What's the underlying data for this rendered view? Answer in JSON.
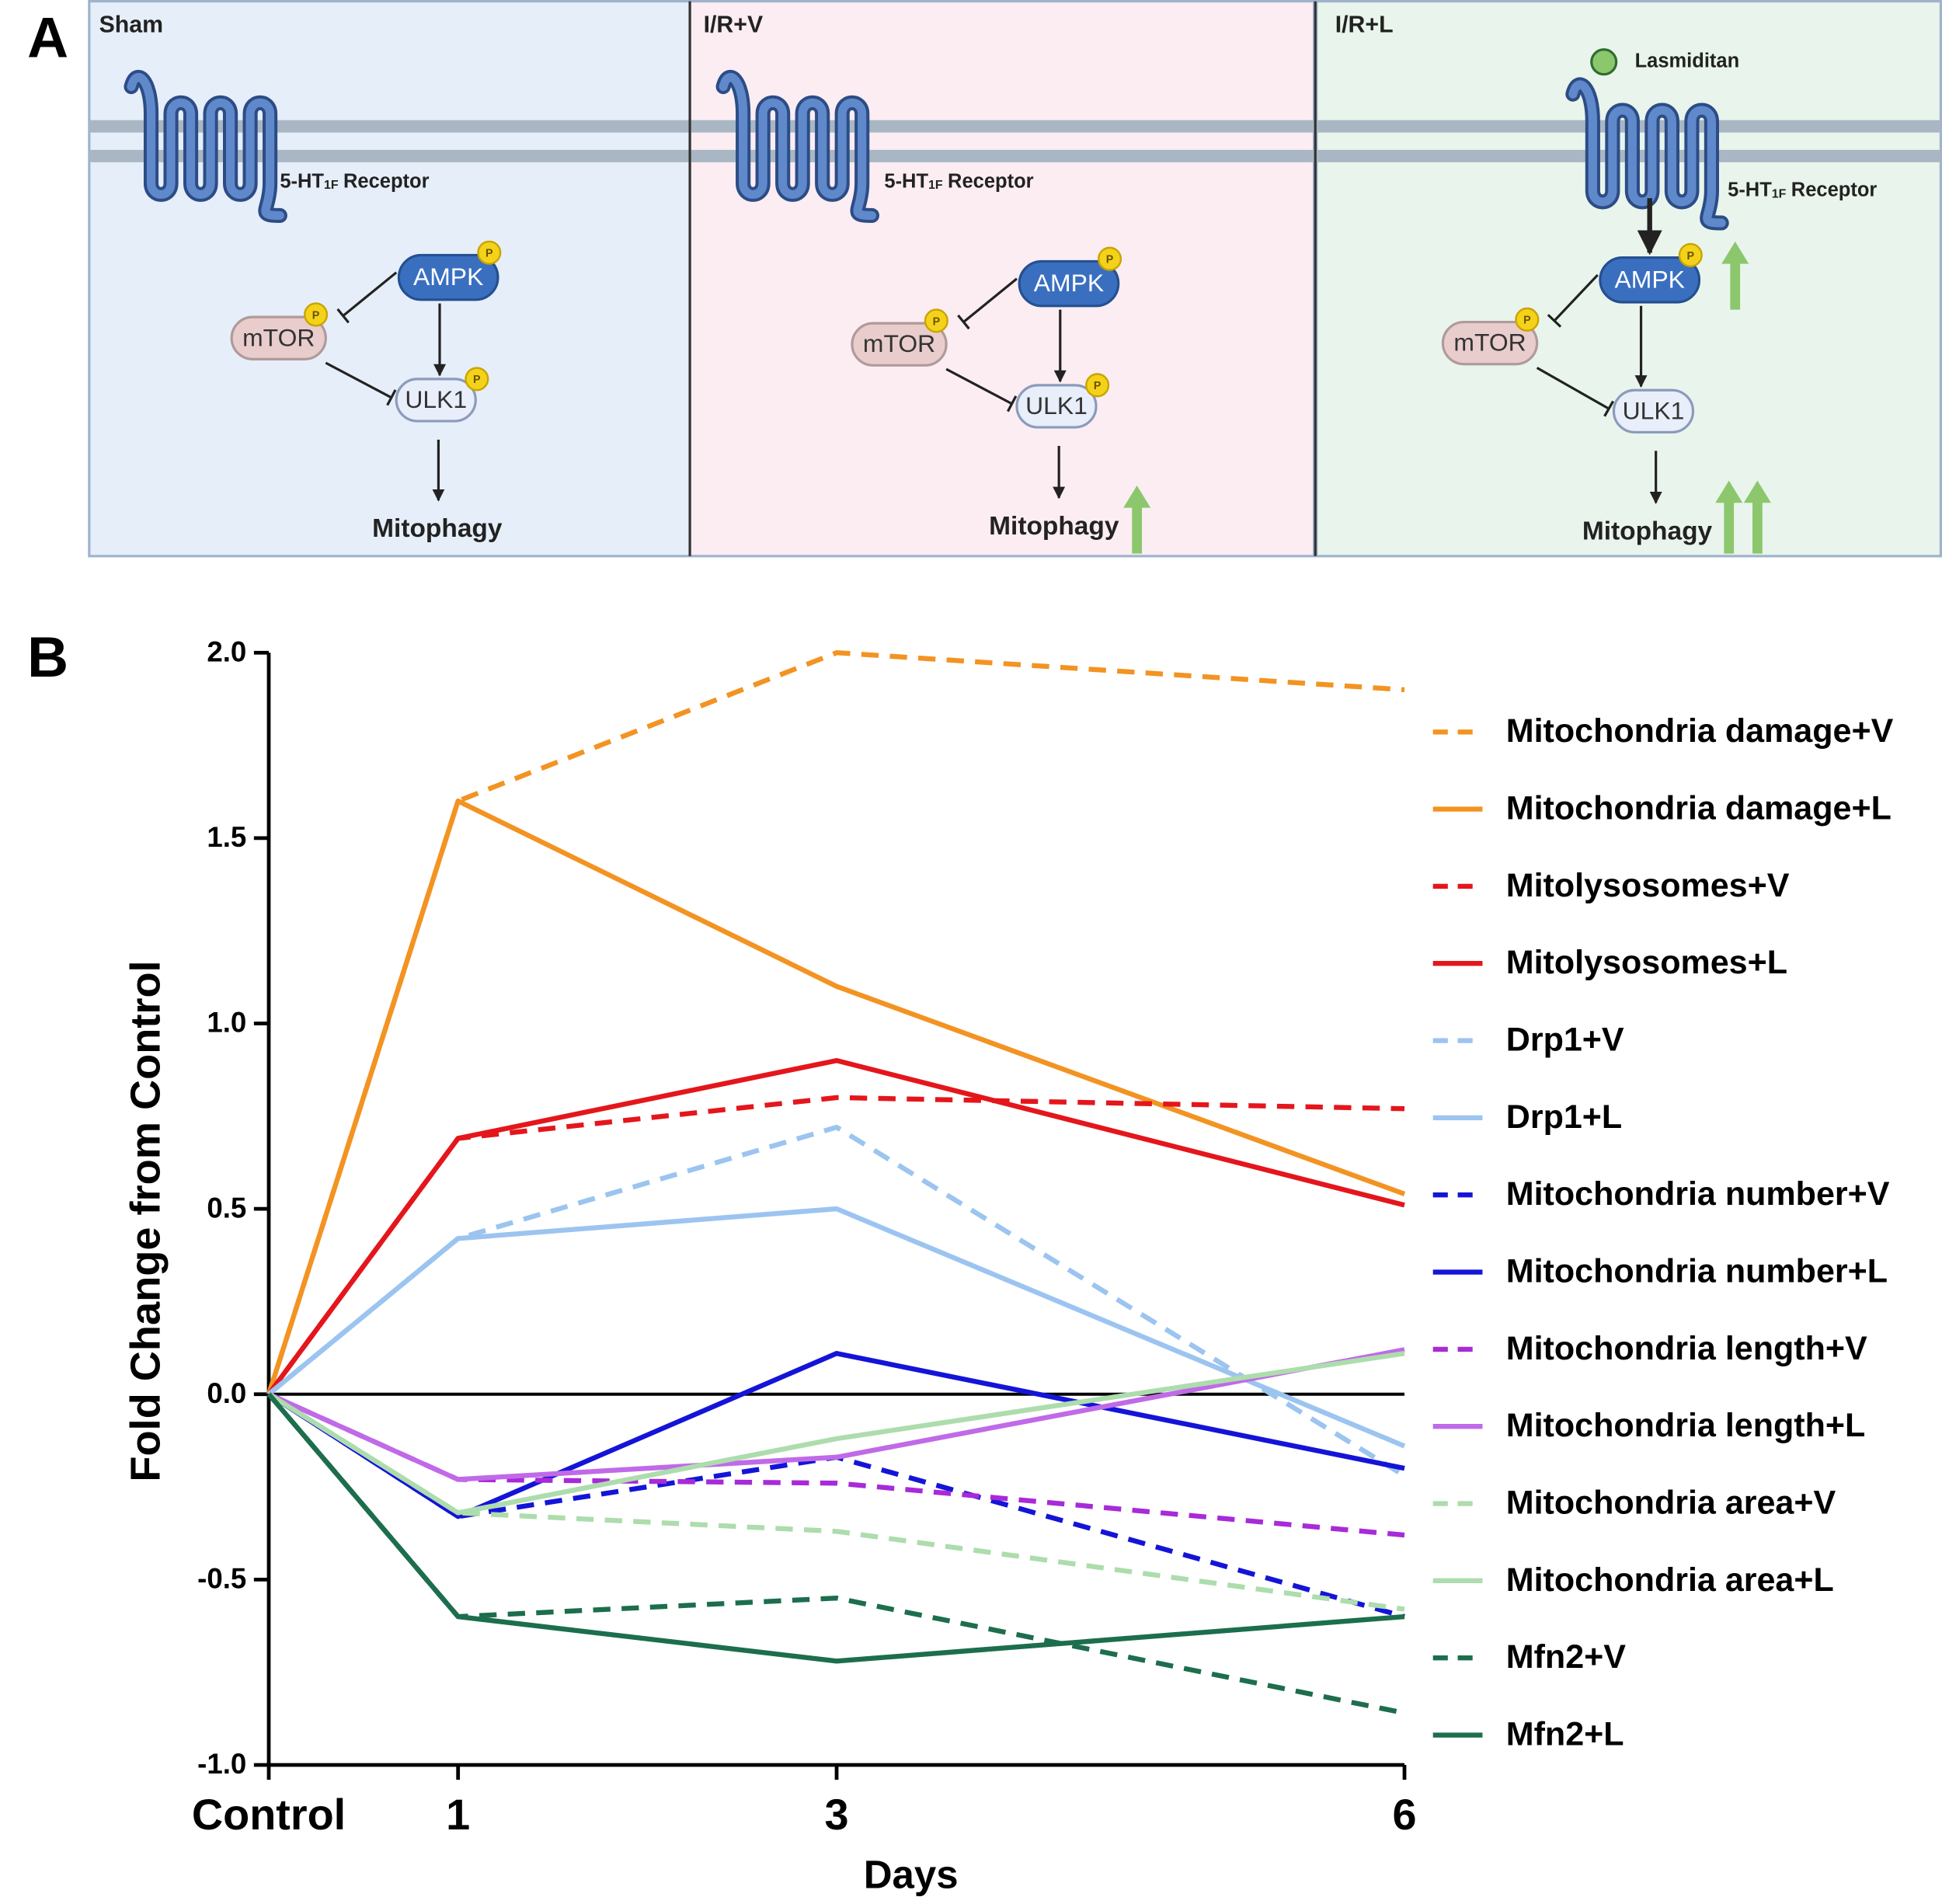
{
  "panel_labels": [
    "A",
    "B"
  ],
  "diagram": {
    "panels": [
      {
        "title": "Sham",
        "receptor_prefix": "5-HT",
        "receptor_sub": "1F",
        "receptor_suffix": "Receptor",
        "ampk": "AMPK",
        "mtor": "mTOR",
        "ulk1": "ULK1",
        "outcome": "Mitophagy",
        "badge": "P"
      },
      {
        "title": "I/R+V",
        "receptor_prefix": "5-HT",
        "receptor_sub": "1F",
        "receptor_suffix": "Receptor",
        "ampk": "AMPK",
        "mtor": "mTOR",
        "ulk1": "ULK1",
        "outcome": "Mitophagy",
        "badge": "P"
      },
      {
        "title": "I/R+L",
        "receptor_prefix": "5-HT",
        "receptor_sub": "1F",
        "receptor_suffix": "Receptor",
        "ampk": "AMPK",
        "mtor": "mTOR",
        "ulk1": "ULK1",
        "outcome": "Mitophagy",
        "badge": "P",
        "drug": "Lasmiditan"
      }
    ]
  },
  "chart_data": {
    "type": "line",
    "x_label": "Days",
    "y_label": "Fold Change from Control",
    "x": [
      0,
      1,
      3,
      6
    ],
    "xlim": [
      0,
      6
    ],
    "xticks": [
      {
        "value": 0,
        "label": "Control"
      },
      1,
      3,
      6
    ],
    "ylim": [
      -1,
      2
    ],
    "yticks": [
      {
        "value": -1,
        "label": "-1.0"
      },
      -0.5,
      {
        "value": 0,
        "label": "0.0"
      },
      0.5,
      {
        "value": 1,
        "label": "1.0"
      },
      1.5,
      {
        "value": 2,
        "label": "2.0"
      }
    ],
    "zero_line": true,
    "legend": "right",
    "series": [
      {
        "name": "Mitochondria damage+V",
        "color": "#f39322",
        "dashed": true,
        "values": [
          0,
          1.6,
          2.0,
          1.9
        ]
      },
      {
        "name": "Mitochondria damage+L",
        "color": "#f39322",
        "dashed": false,
        "values": [
          0,
          1.6,
          1.1,
          0.54
        ]
      },
      {
        "name": "Mitolysosomes+V",
        "color": "#e4161c",
        "dashed": true,
        "values": [
          0,
          0.69,
          0.8,
          0.77
        ]
      },
      {
        "name": "Mitolysosomes+L",
        "color": "#e4161c",
        "dashed": false,
        "values": [
          0,
          0.69,
          0.9,
          0.51
        ]
      },
      {
        "name": "Drp1+V",
        "color": "#9cc4f0",
        "dashed": true,
        "values": [
          0,
          0.42,
          0.72,
          -0.22
        ]
      },
      {
        "name": "Drp1+L",
        "color": "#9cc4f0",
        "dashed": false,
        "values": [
          0,
          0.42,
          0.5,
          -0.14
        ]
      },
      {
        "name": "Mitochondria number+V",
        "color": "#1414d8",
        "dashed": true,
        "values": [
          0,
          -0.33,
          -0.17,
          -0.6
        ]
      },
      {
        "name": "Mitochondria number+L",
        "color": "#1414d8",
        "dashed": false,
        "values": [
          0,
          -0.33,
          0.11,
          -0.2
        ]
      },
      {
        "name": "Mitochondria length+V",
        "color": "#a82ad8",
        "dashed": true,
        "values": [
          0,
          -0.23,
          -0.24,
          -0.38
        ]
      },
      {
        "name": "Mitochondria length+L",
        "color": "#c06ae8",
        "dashed": false,
        "values": [
          0,
          -0.23,
          -0.17,
          0.12
        ]
      },
      {
        "name": "Mitochondria area+V",
        "color": "#addcad",
        "dashed": true,
        "values": [
          0,
          -0.32,
          -0.37,
          -0.58
        ]
      },
      {
        "name": "Mitochondria area+L",
        "color": "#addcad",
        "dashed": false,
        "values": [
          0,
          -0.32,
          -0.12,
          0.11
        ]
      },
      {
        "name": "Mfn2+V",
        "color": "#1c6e4c",
        "dashed": true,
        "values": [
          0,
          -0.6,
          -0.55,
          -0.86
        ]
      },
      {
        "name": "Mfn2+L",
        "color": "#1c6e4c",
        "dashed": false,
        "values": [
          0,
          -0.6,
          -0.72,
          -0.6
        ]
      }
    ]
  }
}
